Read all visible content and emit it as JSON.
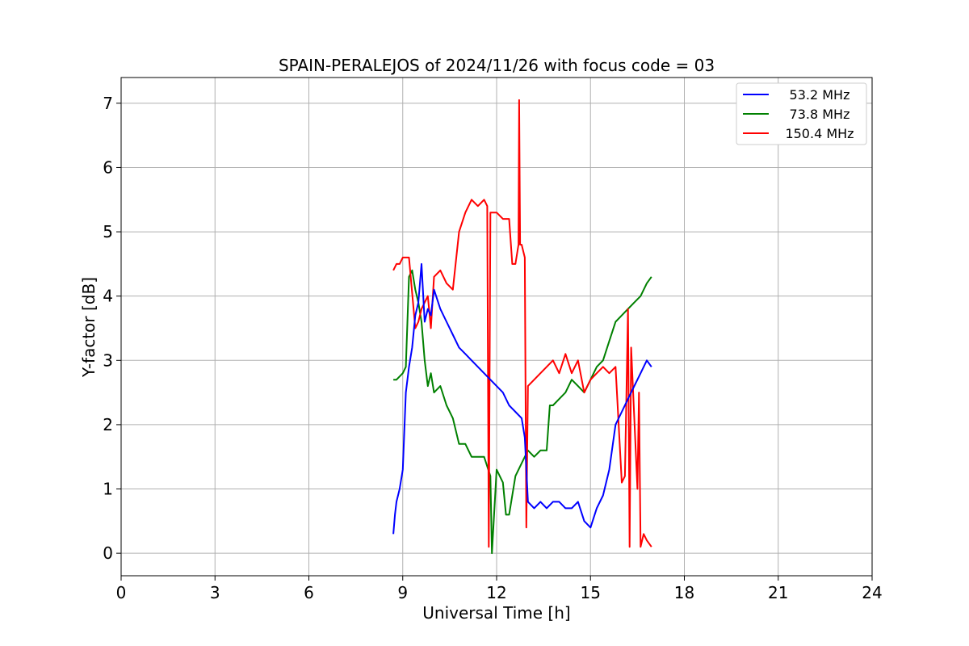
{
  "chart_data": {
    "type": "line",
    "title": "SPAIN-PERALEJOS of 2024/11/26 with focus code = 03",
    "xlabel": "Universal Time [h]",
    "ylabel": "Y-factor [dB]",
    "xlim": [
      0,
      24
    ],
    "ylim": [
      -0.35,
      7.4
    ],
    "xticks": [
      0,
      3,
      6,
      9,
      12,
      15,
      18,
      21,
      24
    ],
    "yticks": [
      0,
      1,
      2,
      3,
      4,
      5,
      6,
      7
    ],
    "grid": true,
    "legend_position": "top-right",
    "series": [
      {
        "name": "53.2 MHz",
        "color": "#0000ff",
        "x": [
          8.7,
          8.75,
          8.8,
          8.9,
          9.0,
          9.05,
          9.1,
          9.2,
          9.3,
          9.4,
          9.5,
          9.6,
          9.7,
          9.8,
          9.9,
          10.0,
          10.2,
          10.4,
          10.6,
          10.8,
          11.0,
          11.2,
          11.4,
          11.6,
          11.8,
          12.0,
          12.2,
          12.4,
          12.6,
          12.8,
          12.9,
          13.0,
          13.2,
          13.4,
          13.6,
          13.8,
          14.0,
          14.2,
          14.4,
          14.6,
          14.8,
          15.0,
          15.2,
          15.4,
          15.6,
          15.8,
          16.0,
          16.2,
          16.4,
          16.6,
          16.8,
          16.95
        ],
        "y": [
          0.3,
          0.6,
          0.8,
          1.0,
          1.3,
          1.9,
          2.5,
          2.9,
          3.2,
          3.7,
          3.9,
          4.5,
          3.6,
          3.8,
          3.7,
          4.1,
          3.8,
          3.6,
          3.4,
          3.2,
          3.1,
          3.0,
          2.9,
          2.8,
          2.7,
          2.6,
          2.5,
          2.3,
          2.2,
          2.1,
          1.8,
          0.8,
          0.7,
          0.8,
          0.7,
          0.8,
          0.8,
          0.7,
          0.7,
          0.8,
          0.5,
          0.4,
          0.7,
          0.9,
          1.3,
          2.0,
          2.2,
          2.4,
          2.6,
          2.8,
          3.0,
          2.9
        ]
      },
      {
        "name": "73.8 MHz",
        "color": "#008000",
        "x": [
          8.7,
          8.8,
          8.9,
          9.0,
          9.1,
          9.2,
          9.3,
          9.4,
          9.5,
          9.6,
          9.7,
          9.8,
          9.9,
          10.0,
          10.2,
          10.4,
          10.6,
          10.8,
          11.0,
          11.2,
          11.4,
          11.6,
          11.8,
          11.85,
          12.0,
          12.2,
          12.3,
          12.4,
          12.6,
          12.8,
          13.0,
          13.2,
          13.4,
          13.6,
          13.7,
          13.8,
          14.0,
          14.2,
          14.4,
          14.6,
          14.8,
          15.0,
          15.2,
          15.4,
          15.6,
          15.8,
          16.0,
          16.2,
          16.4,
          16.6,
          16.8,
          16.95
        ],
        "y": [
          2.7,
          2.7,
          2.75,
          2.8,
          2.9,
          4.3,
          4.4,
          4.1,
          3.9,
          3.6,
          3.0,
          2.6,
          2.8,
          2.5,
          2.6,
          2.3,
          2.1,
          1.7,
          1.7,
          1.5,
          1.5,
          1.5,
          1.2,
          0.0,
          1.3,
          1.1,
          0.6,
          0.6,
          1.2,
          1.4,
          1.6,
          1.5,
          1.6,
          1.6,
          2.3,
          2.3,
          2.4,
          2.5,
          2.7,
          2.6,
          2.5,
          2.7,
          2.9,
          3.0,
          3.3,
          3.6,
          3.7,
          3.8,
          3.9,
          4.0,
          4.2,
          4.3
        ]
      },
      {
        "name": "150.4 MHz",
        "color": "#ff0000",
        "x": [
          8.7,
          8.8,
          8.9,
          9.0,
          9.2,
          9.4,
          9.5,
          9.6,
          9.7,
          9.8,
          9.9,
          10.0,
          10.2,
          10.4,
          10.6,
          10.8,
          11.0,
          11.2,
          11.4,
          11.6,
          11.7,
          11.75,
          11.8,
          12.0,
          12.2,
          12.4,
          12.5,
          12.6,
          12.7,
          12.72,
          12.75,
          12.8,
          12.9,
          12.95,
          13.0,
          13.2,
          13.4,
          13.6,
          13.8,
          14.0,
          14.2,
          14.4,
          14.6,
          14.8,
          15.0,
          15.2,
          15.4,
          15.6,
          15.8,
          16.0,
          16.1,
          16.2,
          16.25,
          16.3,
          16.5,
          16.55,
          16.6,
          16.7,
          16.8,
          16.95
        ],
        "y": [
          4.4,
          4.5,
          4.5,
          4.6,
          4.6,
          3.5,
          3.6,
          3.8,
          3.9,
          4.0,
          3.5,
          4.3,
          4.4,
          4.2,
          4.1,
          5.0,
          5.3,
          5.5,
          5.4,
          5.5,
          5.4,
          0.1,
          5.3,
          5.3,
          5.2,
          5.2,
          4.5,
          4.5,
          4.8,
          7.05,
          4.8,
          4.8,
          4.6,
          0.4,
          2.6,
          2.7,
          2.8,
          2.9,
          3.0,
          2.8,
          3.1,
          2.8,
          3.0,
          2.5,
          2.7,
          2.8,
          2.9,
          2.8,
          2.9,
          1.1,
          1.2,
          3.8,
          0.1,
          3.2,
          1.0,
          2.5,
          0.1,
          0.3,
          0.2,
          0.1
        ]
      }
    ]
  }
}
